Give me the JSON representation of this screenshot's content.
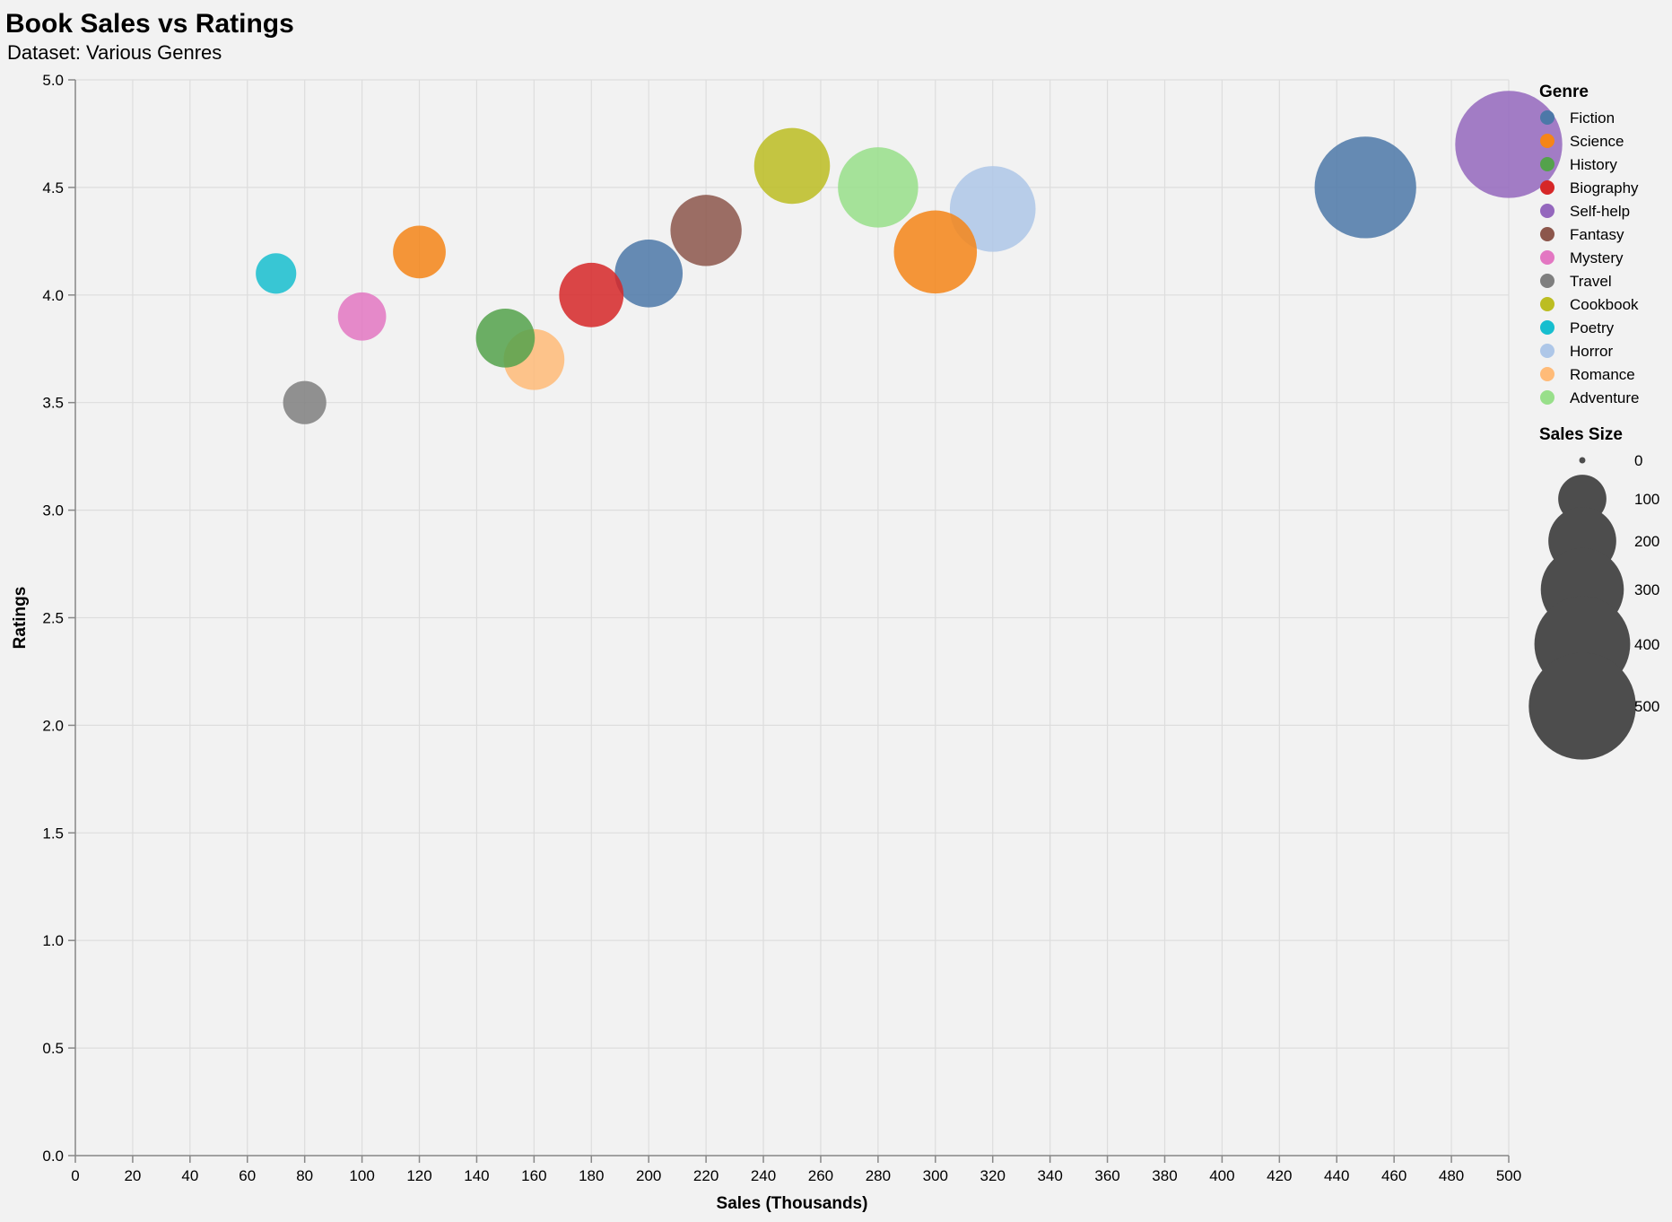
{
  "chart_data": {
    "type": "scatter",
    "title": "Book Sales vs Ratings",
    "subtitle": "Dataset: Various Genres",
    "xlabel": "Sales (Thousands)",
    "ylabel": "Ratings",
    "xlim": [
      0,
      500
    ],
    "ylim": [
      0,
      5
    ],
    "x_ticks": [
      0,
      20,
      40,
      60,
      80,
      100,
      120,
      140,
      160,
      180,
      200,
      220,
      240,
      260,
      280,
      300,
      320,
      340,
      360,
      380,
      400,
      420,
      440,
      460,
      480,
      500
    ],
    "y_ticks": [
      0.0,
      0.5,
      1.0,
      1.5,
      2.0,
      2.5,
      3.0,
      3.5,
      4.0,
      4.5,
      5.0
    ],
    "y_tick_labels": [
      "0.0",
      "0.5",
      "1.0",
      "1.5",
      "2.0",
      "2.5",
      "3.0",
      "3.5",
      "4.0",
      "4.5",
      "5.0"
    ],
    "grid": true,
    "legend_placement": "right",
    "genre_legend": {
      "title": "Genre",
      "entries": [
        {
          "name": "Fiction",
          "color": "#4c78a8"
        },
        {
          "name": "Science",
          "color": "#f58518"
        },
        {
          "name": "History",
          "color": "#54a24b"
        },
        {
          "name": "Biography",
          "color": "#d62728"
        },
        {
          "name": "Self-help",
          "color": "#9467bd"
        },
        {
          "name": "Fantasy",
          "color": "#8c564b"
        },
        {
          "name": "Mystery",
          "color": "#e377c2"
        },
        {
          "name": "Travel",
          "color": "#7f7f7f"
        },
        {
          "name": "Cookbook",
          "color": "#bcbd22"
        },
        {
          "name": "Poetry",
          "color": "#17becf"
        },
        {
          "name": "Horror",
          "color": "#aec7e8"
        },
        {
          "name": "Romance",
          "color": "#ffbb78"
        },
        {
          "name": "Adventure",
          "color": "#98df8a"
        }
      ]
    },
    "size_legend": {
      "title": "Sales Size",
      "values": [
        0,
        100,
        200,
        300,
        400,
        500
      ],
      "labels": [
        "0",
        "100",
        "200",
        "300",
        "400",
        "500"
      ]
    },
    "points": [
      {
        "genre": "Fiction",
        "sales": 450,
        "rating": 4.5
      },
      {
        "genre": "Fiction",
        "sales": 200,
        "rating": 4.1
      },
      {
        "genre": "Science",
        "sales": 300,
        "rating": 4.2
      },
      {
        "genre": "Science",
        "sales": 120,
        "rating": 4.2
      },
      {
        "genre": "History",
        "sales": 150,
        "rating": 3.8
      },
      {
        "genre": "Biography",
        "sales": 180,
        "rating": 4.0
      },
      {
        "genre": "Self-help",
        "sales": 500,
        "rating": 4.7
      },
      {
        "genre": "Fantasy",
        "sales": 220,
        "rating": 4.3
      },
      {
        "genre": "Mystery",
        "sales": 100,
        "rating": 3.9
      },
      {
        "genre": "Travel",
        "sales": 80,
        "rating": 3.5
      },
      {
        "genre": "Cookbook",
        "sales": 250,
        "rating": 4.6
      },
      {
        "genre": "Poetry",
        "sales": 70,
        "rating": 4.1
      },
      {
        "genre": "Horror",
        "sales": 320,
        "rating": 4.4
      },
      {
        "genre": "Romance",
        "sales": 160,
        "rating": 3.7
      },
      {
        "genre": "Adventure",
        "sales": 280,
        "rating": 4.5
      }
    ]
  }
}
